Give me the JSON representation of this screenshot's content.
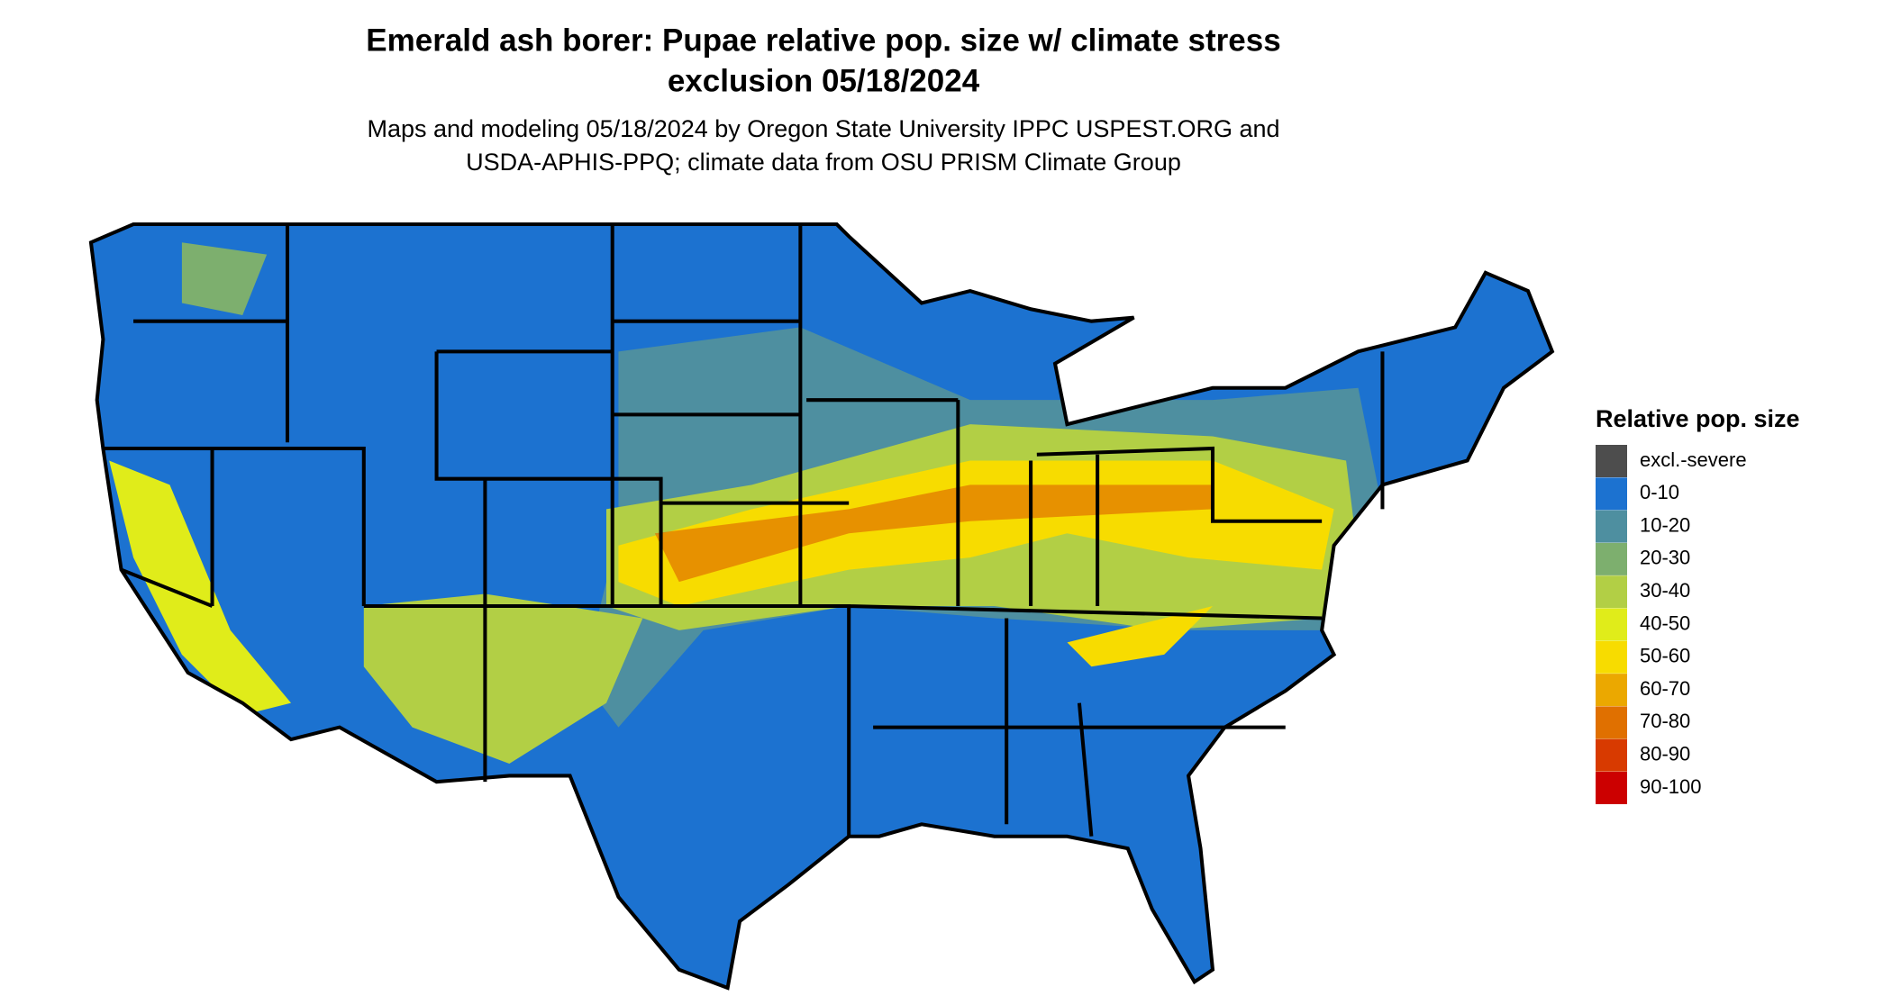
{
  "title": [
    "Emerald ash borer: Pupae relative pop. size w/ climate stress",
    "exclusion 05/18/2024"
  ],
  "subtitle": [
    "Maps and modeling 05/18/2024 by Oregon State University IPPC USPEST.ORG and",
    "USDA-APHIS-PPQ; climate data from OSU PRISM Climate Group"
  ],
  "legend": {
    "title": "Relative pop. size",
    "items": [
      {
        "label": "excl.-severe",
        "color": "#4d4d4d"
      },
      {
        "label": "0-10",
        "color": "#1c72d0"
      },
      {
        "label": "10-20",
        "color": "#4e8fa0"
      },
      {
        "label": "20-30",
        "color": "#7daf6e"
      },
      {
        "label": "30-40",
        "color": "#b2cf45"
      },
      {
        "label": "40-50",
        "color": "#e0ec1a"
      },
      {
        "label": "50-60",
        "color": "#f7dc00"
      },
      {
        "label": "60-70",
        "color": "#eba800"
      },
      {
        "label": "70-80",
        "color": "#e07000"
      },
      {
        "label": "80-90",
        "color": "#d83a00"
      },
      {
        "label": "90-100",
        "color": "#cc0000"
      }
    ]
  }
}
